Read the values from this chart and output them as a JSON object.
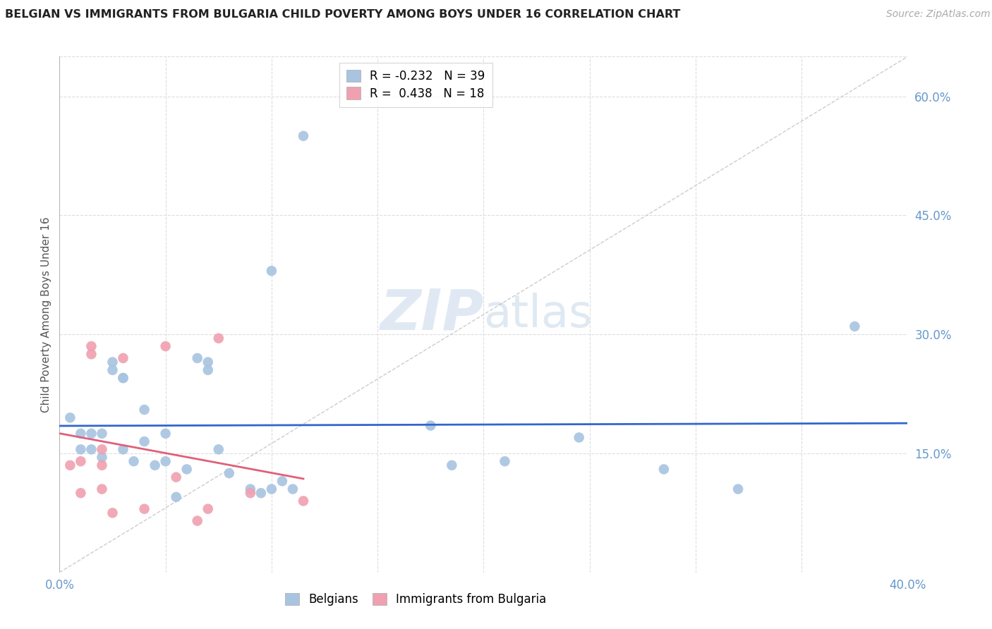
{
  "title": "BELGIAN VS IMMIGRANTS FROM BULGARIA CHILD POVERTY AMONG BOYS UNDER 16 CORRELATION CHART",
  "source": "Source: ZipAtlas.com",
  "xlabel": "",
  "ylabel": "Child Poverty Among Boys Under 16",
  "xlim": [
    0.0,
    0.4
  ],
  "ylim": [
    0.0,
    0.65
  ],
  "xticks": [
    0.0,
    0.05,
    0.1,
    0.15,
    0.2,
    0.25,
    0.3,
    0.35,
    0.4
  ],
  "xticklabels": [
    "0.0%",
    "",
    "",
    "",
    "",
    "",
    "",
    "",
    "40.0%"
  ],
  "yticks_right": [
    0.15,
    0.3,
    0.45,
    0.6
  ],
  "ytick_right_labels": [
    "15.0%",
    "30.0%",
    "45.0%",
    "60.0%"
  ],
  "legend_r_blue": "-0.232",
  "legend_n_blue": "39",
  "legend_r_pink": "0.438",
  "legend_n_pink": "18",
  "blue_color": "#a8c4e0",
  "blue_line_color": "#3366cc",
  "pink_color": "#f0a0b0",
  "pink_line_color": "#e0607a",
  "dot_size": 110,
  "blue_scatter_x": [
    0.005,
    0.01,
    0.01,
    0.015,
    0.015,
    0.02,
    0.02,
    0.025,
    0.025,
    0.03,
    0.03,
    0.03,
    0.035,
    0.04,
    0.04,
    0.045,
    0.05,
    0.05,
    0.055,
    0.06,
    0.065,
    0.07,
    0.07,
    0.075,
    0.08,
    0.09,
    0.095,
    0.1,
    0.1,
    0.105,
    0.11,
    0.115,
    0.175,
    0.185,
    0.21,
    0.245,
    0.285,
    0.32,
    0.375
  ],
  "blue_scatter_y": [
    0.195,
    0.175,
    0.155,
    0.175,
    0.155,
    0.175,
    0.145,
    0.255,
    0.265,
    0.245,
    0.245,
    0.155,
    0.14,
    0.205,
    0.165,
    0.135,
    0.175,
    0.14,
    0.095,
    0.13,
    0.27,
    0.255,
    0.265,
    0.155,
    0.125,
    0.105,
    0.1,
    0.105,
    0.38,
    0.115,
    0.105,
    0.55,
    0.185,
    0.135,
    0.14,
    0.17,
    0.13,
    0.105,
    0.31
  ],
  "pink_scatter_x": [
    0.005,
    0.01,
    0.01,
    0.015,
    0.015,
    0.02,
    0.02,
    0.02,
    0.025,
    0.03,
    0.04,
    0.05,
    0.055,
    0.065,
    0.07,
    0.075,
    0.09,
    0.115
  ],
  "pink_scatter_y": [
    0.135,
    0.14,
    0.1,
    0.285,
    0.275,
    0.155,
    0.135,
    0.105,
    0.075,
    0.27,
    0.08,
    0.285,
    0.12,
    0.065,
    0.08,
    0.295,
    0.1,
    0.09
  ],
  "watermark_zip": "ZIP",
  "watermark_atlas": "atlas",
  "background_color": "#ffffff"
}
